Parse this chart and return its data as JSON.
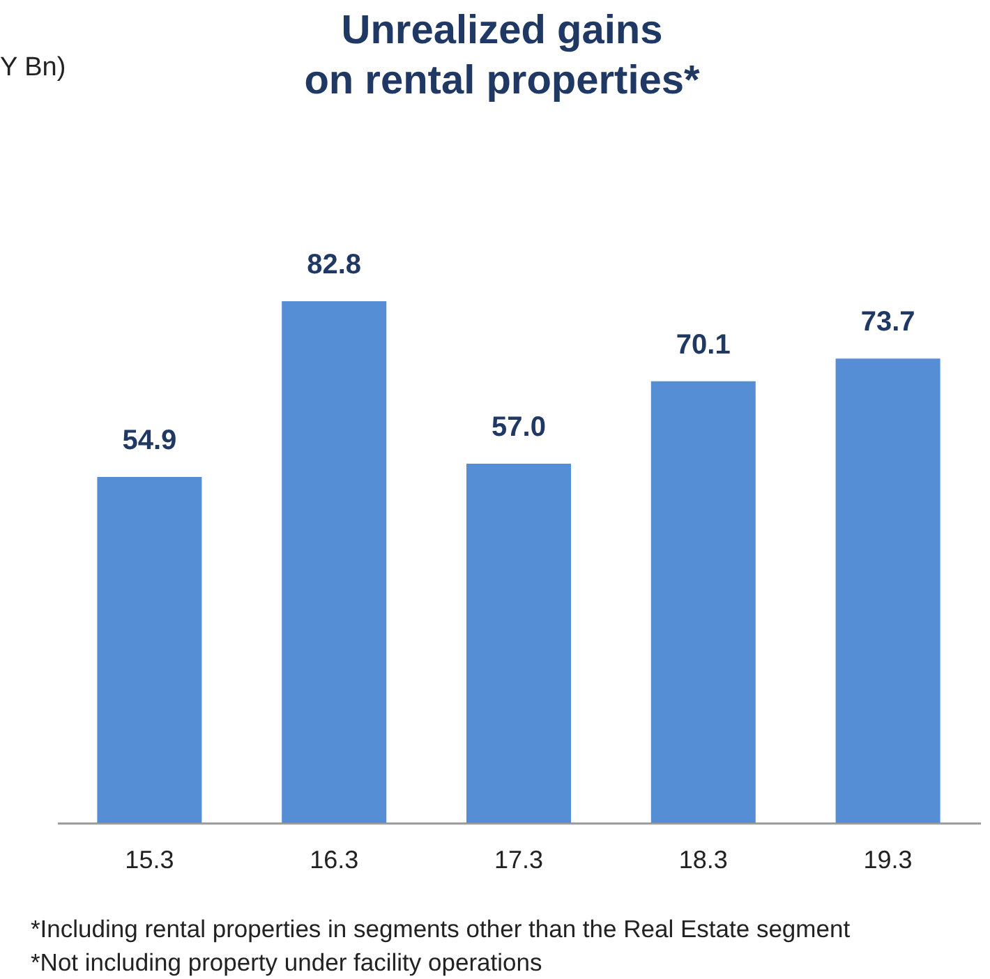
{
  "chart_data": {
    "type": "bar",
    "title": "Unrealized gains\non rental properties*",
    "subtitle": "Y Bn)",
    "categories": [
      "15.3",
      "16.3",
      "17.3",
      "18.3",
      "19.3"
    ],
    "values": [
      54.9,
      82.8,
      57.0,
      70.1,
      73.7
    ],
    "value_labels": [
      "54.9",
      "82.8",
      "57.0",
      "70.1",
      "73.7"
    ],
    "color": "#558ed5",
    "grid": false,
    "annotations": [
      "*Including rental properties in segments other than the Real Estate segment",
      "*Not including property under facility operations"
    ]
  }
}
